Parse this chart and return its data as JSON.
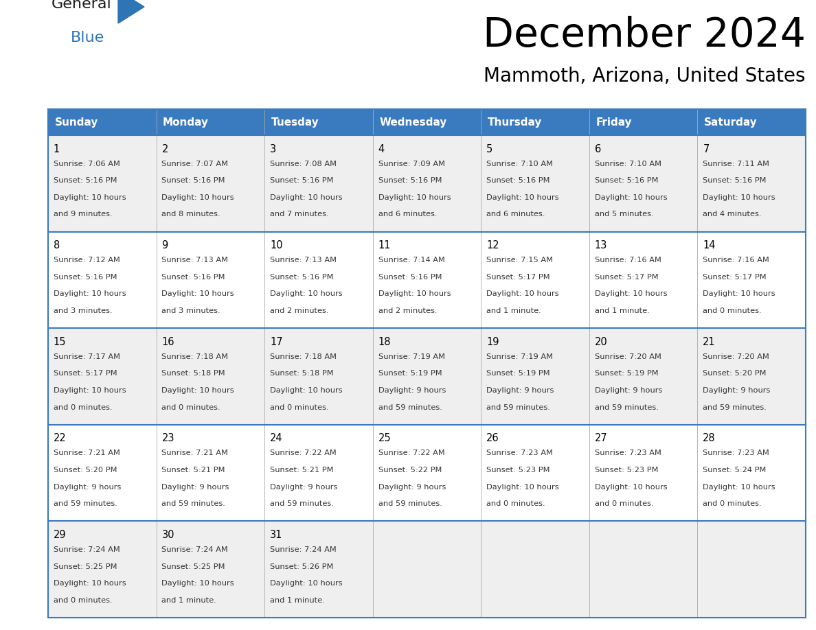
{
  "title": "December 2024",
  "subtitle": "Mammoth, Arizona, United States",
  "header_color": "#3a7abf",
  "header_text_color": "#ffffff",
  "row_bg_odd": "#efefef",
  "row_bg_even": "#ffffff",
  "border_color": "#3a7abf",
  "grid_color": "#aaaaaa",
  "text_color": "#333333",
  "day_num_color": "#000000",
  "days_of_week": [
    "Sunday",
    "Monday",
    "Tuesday",
    "Wednesday",
    "Thursday",
    "Friday",
    "Saturday"
  ],
  "weeks": [
    [
      {
        "day": 1,
        "sunrise": "7:06 AM",
        "sunset": "5:16 PM",
        "daylight": "10 hours and 9 minutes."
      },
      {
        "day": 2,
        "sunrise": "7:07 AM",
        "sunset": "5:16 PM",
        "daylight": "10 hours and 8 minutes."
      },
      {
        "day": 3,
        "sunrise": "7:08 AM",
        "sunset": "5:16 PM",
        "daylight": "10 hours and 7 minutes."
      },
      {
        "day": 4,
        "sunrise": "7:09 AM",
        "sunset": "5:16 PM",
        "daylight": "10 hours and 6 minutes."
      },
      {
        "day": 5,
        "sunrise": "7:10 AM",
        "sunset": "5:16 PM",
        "daylight": "10 hours and 6 minutes."
      },
      {
        "day": 6,
        "sunrise": "7:10 AM",
        "sunset": "5:16 PM",
        "daylight": "10 hours and 5 minutes."
      },
      {
        "day": 7,
        "sunrise": "7:11 AM",
        "sunset": "5:16 PM",
        "daylight": "10 hours and 4 minutes."
      }
    ],
    [
      {
        "day": 8,
        "sunrise": "7:12 AM",
        "sunset": "5:16 PM",
        "daylight": "10 hours and 3 minutes."
      },
      {
        "day": 9,
        "sunrise": "7:13 AM",
        "sunset": "5:16 PM",
        "daylight": "10 hours and 3 minutes."
      },
      {
        "day": 10,
        "sunrise": "7:13 AM",
        "sunset": "5:16 PM",
        "daylight": "10 hours and 2 minutes."
      },
      {
        "day": 11,
        "sunrise": "7:14 AM",
        "sunset": "5:16 PM",
        "daylight": "10 hours and 2 minutes."
      },
      {
        "day": 12,
        "sunrise": "7:15 AM",
        "sunset": "5:17 PM",
        "daylight": "10 hours and 1 minute."
      },
      {
        "day": 13,
        "sunrise": "7:16 AM",
        "sunset": "5:17 PM",
        "daylight": "10 hours and 1 minute."
      },
      {
        "day": 14,
        "sunrise": "7:16 AM",
        "sunset": "5:17 PM",
        "daylight": "10 hours and 0 minutes."
      }
    ],
    [
      {
        "day": 15,
        "sunrise": "7:17 AM",
        "sunset": "5:17 PM",
        "daylight": "10 hours and 0 minutes."
      },
      {
        "day": 16,
        "sunrise": "7:18 AM",
        "sunset": "5:18 PM",
        "daylight": "10 hours and 0 minutes."
      },
      {
        "day": 17,
        "sunrise": "7:18 AM",
        "sunset": "5:18 PM",
        "daylight": "10 hours and 0 minutes."
      },
      {
        "day": 18,
        "sunrise": "7:19 AM",
        "sunset": "5:19 PM",
        "daylight": "9 hours and 59 minutes."
      },
      {
        "day": 19,
        "sunrise": "7:19 AM",
        "sunset": "5:19 PM",
        "daylight": "9 hours and 59 minutes."
      },
      {
        "day": 20,
        "sunrise": "7:20 AM",
        "sunset": "5:19 PM",
        "daylight": "9 hours and 59 minutes."
      },
      {
        "day": 21,
        "sunrise": "7:20 AM",
        "sunset": "5:20 PM",
        "daylight": "9 hours and 59 minutes."
      }
    ],
    [
      {
        "day": 22,
        "sunrise": "7:21 AM",
        "sunset": "5:20 PM",
        "daylight": "9 hours and 59 minutes."
      },
      {
        "day": 23,
        "sunrise": "7:21 AM",
        "sunset": "5:21 PM",
        "daylight": "9 hours and 59 minutes."
      },
      {
        "day": 24,
        "sunrise": "7:22 AM",
        "sunset": "5:21 PM",
        "daylight": "9 hours and 59 minutes."
      },
      {
        "day": 25,
        "sunrise": "7:22 AM",
        "sunset": "5:22 PM",
        "daylight": "9 hours and 59 minutes."
      },
      {
        "day": 26,
        "sunrise": "7:23 AM",
        "sunset": "5:23 PM",
        "daylight": "10 hours and 0 minutes."
      },
      {
        "day": 27,
        "sunrise": "7:23 AM",
        "sunset": "5:23 PM",
        "daylight": "10 hours and 0 minutes."
      },
      {
        "day": 28,
        "sunrise": "7:23 AM",
        "sunset": "5:24 PM",
        "daylight": "10 hours and 0 minutes."
      }
    ],
    [
      {
        "day": 29,
        "sunrise": "7:24 AM",
        "sunset": "5:25 PM",
        "daylight": "10 hours and 0 minutes."
      },
      {
        "day": 30,
        "sunrise": "7:24 AM",
        "sunset": "5:25 PM",
        "daylight": "10 hours and 1 minute."
      },
      {
        "day": 31,
        "sunrise": "7:24 AM",
        "sunset": "5:26 PM",
        "daylight": "10 hours and 1 minute."
      },
      null,
      null,
      null,
      null
    ]
  ],
  "logo_triangle_color": "#2e75b6",
  "logo_blue_color": "#2e75b6"
}
